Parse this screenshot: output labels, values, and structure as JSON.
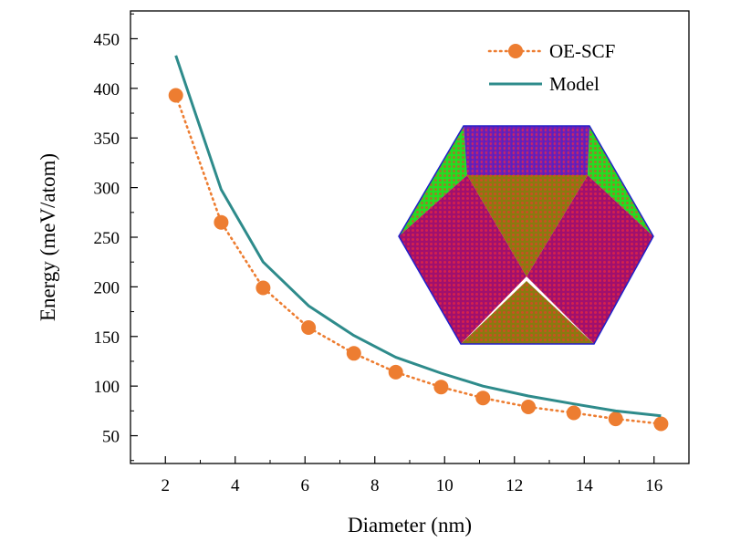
{
  "chart_data": {
    "type": "line",
    "xlabel": "Diameter (nm)",
    "ylabel": "Energy (meV/atom)",
    "xlim": [
      1.0,
      17.0
    ],
    "ylim": [
      22,
      478
    ],
    "xticks": [
      2,
      4,
      6,
      8,
      10,
      12,
      14,
      16
    ],
    "yticks": [
      50,
      100,
      150,
      200,
      250,
      300,
      350,
      400,
      450
    ],
    "grid": false,
    "legend_position": "top-right",
    "series": [
      {
        "name": "OE-SCF",
        "style": "dotted-markers",
        "color": "#ED7D31",
        "x": [
          2.3,
          3.6,
          4.8,
          6.1,
          7.4,
          8.6,
          9.9,
          11.1,
          12.4,
          13.7,
          14.9,
          16.2
        ],
        "y": [
          393,
          265,
          199,
          159,
          133,
          114,
          99,
          88,
          79,
          73,
          67,
          62
        ]
      },
      {
        "name": "Model",
        "style": "solid",
        "color": "#2E8B8B",
        "x": [
          2.3,
          3.6,
          4.8,
          6.1,
          7.4,
          8.6,
          9.9,
          11.1,
          12.4,
          13.7,
          14.9,
          16.2
        ],
        "y": [
          433,
          298,
          225,
          181,
          151,
          129,
          113,
          100,
          90,
          82,
          75,
          70
        ]
      }
    ],
    "inset": {
      "type": "icosahedral-cluster-illustration",
      "colors": {
        "magenta": "#A0106E",
        "purple": "#7A1AB0",
        "olive": "#8A7A10",
        "green": "#22DD22",
        "blue": "#2020CC"
      }
    }
  }
}
